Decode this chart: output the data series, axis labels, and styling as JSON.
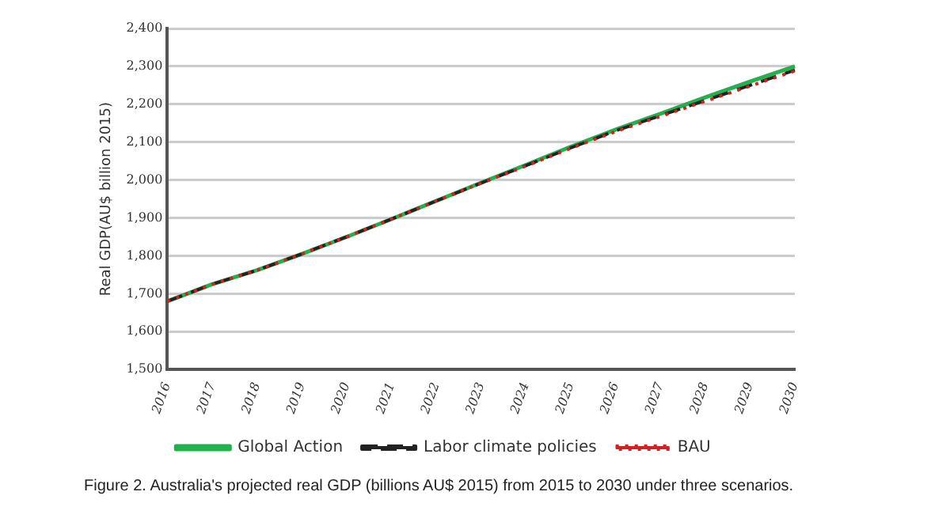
{
  "chart_data": {
    "type": "line",
    "ylabel": "Real GDP(AU$ billion 2015)",
    "categories": [
      "2016",
      "2017",
      "2018",
      "2019",
      "2020",
      "2021",
      "2022",
      "2023",
      "2024",
      "2025",
      "2026",
      "2027",
      "2028",
      "2029",
      "2030"
    ],
    "series": [
      {
        "name": "Global Action",
        "color": "#22b14c",
        "line_style": "solid",
        "values": [
          1680,
          1725,
          1762,
          1805,
          1850,
          1897,
          1945,
          1993,
          2040,
          2088,
          2133,
          2175,
          2218,
          2260,
          2300
        ]
      },
      {
        "name": "Labor climate policies",
        "color": "#222222",
        "line_style": "dashed",
        "values": [
          1680,
          1725,
          1762,
          1805,
          1850,
          1897,
          1945,
          1992,
          2038,
          2085,
          2130,
          2170,
          2210,
          2250,
          2290
        ]
      },
      {
        "name": "BAU",
        "color": "#d42020",
        "line_style": "dotted",
        "values": [
          1680,
          1725,
          1762,
          1805,
          1850,
          1897,
          1945,
          1992,
          2037,
          2084,
          2128,
          2168,
          2208,
          2248,
          2288
        ]
      }
    ],
    "ylim": [
      1500,
      2400
    ],
    "yticks": [
      {
        "value": 1500,
        "label": "1,500"
      },
      {
        "value": 1600,
        "label": "1,600"
      },
      {
        "value": 1700,
        "label": "1,700"
      },
      {
        "value": 1800,
        "label": "1,800"
      },
      {
        "value": 1900,
        "label": "1,900"
      },
      {
        "value": 2000,
        "label": "2,000"
      },
      {
        "value": 2100,
        "label": "2,100"
      },
      {
        "value": 2200,
        "label": "2,200"
      },
      {
        "value": 2300,
        "label": "2,300"
      },
      {
        "value": 2400,
        "label": "2,400"
      }
    ],
    "grid": "y",
    "legend": "bottom",
    "marker": "none",
    "annotations": [
      "Figure 2. Australia's projected real GDP (billions AU$ 2015) from 2015 to 2030 under three scenarios."
    ]
  }
}
